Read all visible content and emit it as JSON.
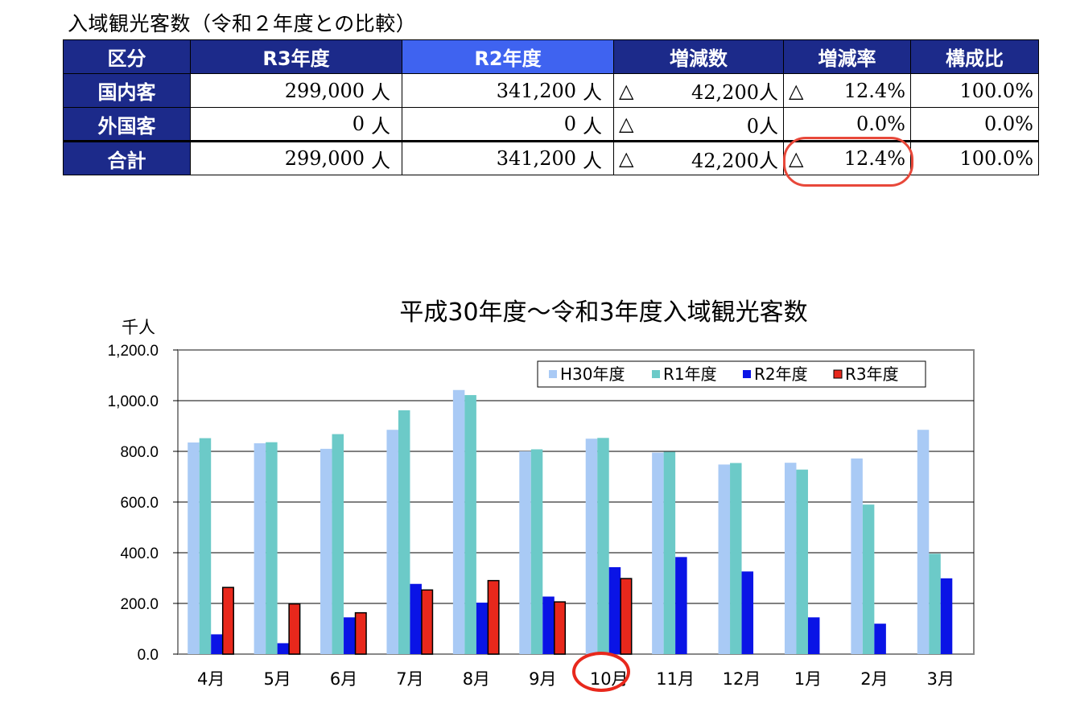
{
  "table": {
    "title": "入域観光客数（令和２年度との比較）",
    "headers": [
      "区分",
      "R3年度",
      "R2年度",
      "増減数",
      "増減率",
      "構成比"
    ],
    "rows": [
      {
        "label": "国内客",
        "r3": "299,000",
        "r3_unit": "人",
        "r2": "341,200",
        "r2_unit": "人",
        "diff_mark": "△",
        "diff": "42,200人",
        "rate_mark": "△",
        "rate": "12.4%",
        "share": "100.0%"
      },
      {
        "label": "外国客",
        "r3": "0",
        "r3_unit": "人",
        "r2": "0",
        "r2_unit": "人",
        "diff_mark": "△",
        "diff": "0人",
        "rate_mark": "",
        "rate": "0.0%",
        "share": "0.0%"
      },
      {
        "label": "合計",
        "r3": "299,000",
        "r3_unit": "人",
        "r2": "341,200",
        "r2_unit": "人",
        "diff_mark": "△",
        "diff": "42,200人",
        "rate_mark": "△",
        "rate": "12.4%",
        "share": "100.0%"
      }
    ],
    "highlight_color": "#3f63f0",
    "header_color": "#1c2a8a"
  },
  "chart_data": {
    "type": "bar",
    "title": "平成30年度～令和3年度入域観光客数",
    "ylabel": "千人",
    "xlabel": "",
    "ylim": [
      0,
      1200
    ],
    "yticks": [
      "0.0",
      "200.0",
      "400.0",
      "600.0",
      "800.0",
      "1,000.0",
      "1,200.0"
    ],
    "categories": [
      "4月",
      "5月",
      "6月",
      "7月",
      "8月",
      "9月",
      "10月",
      "11月",
      "12月",
      "1月",
      "2月",
      "3月"
    ],
    "legend_position": "top-right",
    "grid": "horizontal",
    "series": [
      {
        "name": "H30年度",
        "color": "#a9caf5",
        "values": [
          835,
          832,
          810,
          885,
          1042,
          800,
          850,
          795,
          748,
          755,
          772,
          885
        ]
      },
      {
        "name": "R1年度",
        "color": "#6ccac8",
        "values": [
          852,
          836,
          868,
          962,
          1022,
          808,
          853,
          798,
          754,
          728,
          590,
          396
        ]
      },
      {
        "name": "R2年度",
        "color": "#0a14e6",
        "values": [
          78,
          43,
          145,
          277,
          203,
          227,
          343,
          383,
          326,
          145,
          120,
          299
        ]
      },
      {
        "name": "R3年度",
        "color": "#e8281c",
        "values": [
          263,
          198,
          163,
          253,
          290,
          206,
          298,
          null,
          null,
          null,
          null,
          null
        ]
      }
    ]
  }
}
